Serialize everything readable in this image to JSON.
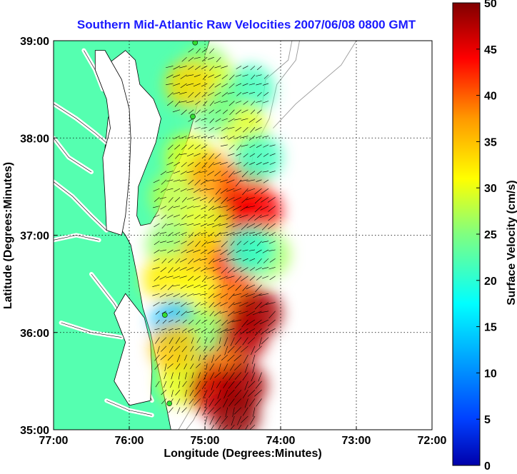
{
  "chart_data": {
    "type": "heatmap",
    "title": "Southern Mid-Atlantic Raw Velocities 2007/06/08 0800 GMT",
    "xlabel": "Longitude (Degrees:Minutes)",
    "ylabel": "Latitude (Degrees:Minutes)",
    "xlim": [
      -77,
      -72
    ],
    "ylim": [
      35,
      39
    ],
    "x_ticks": [
      -77,
      -76,
      -75,
      -74,
      -73,
      -72
    ],
    "x_tick_labels": [
      "77:00",
      "76:00",
      "75:00",
      "74:00",
      "73:00",
      "72:00"
    ],
    "y_ticks": [
      35,
      36,
      37,
      38,
      39
    ],
    "y_tick_labels": [
      "35:00",
      "36:00",
      "37:00",
      "38:00",
      "39:00"
    ],
    "grid": true,
    "colorbar": {
      "label": "Surface Velocity (cm/s)",
      "range": [
        0,
        50
      ],
      "ticks": [
        0,
        5,
        10,
        15,
        20,
        25,
        30,
        35,
        40,
        45,
        50
      ],
      "tick_labels": [
        "0",
        "5",
        "10",
        "15",
        "20",
        "25",
        "30",
        "35",
        "40",
        "45",
        "50"
      ],
      "colormap": "jet"
    },
    "land_color": "#55ffb0",
    "station_color": "#33dd33",
    "stations": [
      {
        "lon": -75.13,
        "lat": 38.98
      },
      {
        "lon": -75.16,
        "lat": 38.22
      },
      {
        "lon": -75.53,
        "lat": 36.18
      },
      {
        "lon": -75.47,
        "lat": 35.27
      }
    ],
    "field_regions": [
      {
        "lon": -75.0,
        "lat": 38.7,
        "speed": 26
      },
      {
        "lon": -74.8,
        "lat": 38.5,
        "speed": 30
      },
      {
        "lon": -74.4,
        "lat": 38.5,
        "speed": 22
      },
      {
        "lon": -74.5,
        "lat": 38.1,
        "speed": 30
      },
      {
        "lon": -74.9,
        "lat": 38.3,
        "speed": 24
      },
      {
        "lon": -75.2,
        "lat": 38.55,
        "speed": 33
      },
      {
        "lon": -75.2,
        "lat": 37.8,
        "speed": 30
      },
      {
        "lon": -75.4,
        "lat": 37.4,
        "speed": 28
      },
      {
        "lon": -74.9,
        "lat": 37.6,
        "speed": 36
      },
      {
        "lon": -74.5,
        "lat": 37.5,
        "speed": 40
      },
      {
        "lon": -74.3,
        "lat": 37.8,
        "speed": 22
      },
      {
        "lon": -74.6,
        "lat": 37.2,
        "speed": 45
      },
      {
        "lon": -74.3,
        "lat": 37.25,
        "speed": 44
      },
      {
        "lon": -75.0,
        "lat": 37.1,
        "speed": 30
      },
      {
        "lon": -75.45,
        "lat": 36.9,
        "speed": 26
      },
      {
        "lon": -75.0,
        "lat": 36.8,
        "speed": 34
      },
      {
        "lon": -74.6,
        "lat": 36.7,
        "speed": 42
      },
      {
        "lon": -74.2,
        "lat": 36.8,
        "speed": 27
      },
      {
        "lon": -75.5,
        "lat": 36.55,
        "speed": 32
      },
      {
        "lon": -75.1,
        "lat": 36.35,
        "speed": 31
      },
      {
        "lon": -74.6,
        "lat": 36.3,
        "speed": 38
      },
      {
        "lon": -75.4,
        "lat": 36.1,
        "speed": 16
      },
      {
        "lon": -75.0,
        "lat": 36.0,
        "speed": 26
      },
      {
        "lon": -74.5,
        "lat": 35.95,
        "speed": 47
      },
      {
        "lon": -74.3,
        "lat": 36.2,
        "speed": 48
      },
      {
        "lon": -75.1,
        "lat": 35.7,
        "speed": 24
      },
      {
        "lon": -74.8,
        "lat": 35.6,
        "speed": 38
      },
      {
        "lon": -75.3,
        "lat": 35.5,
        "speed": 30
      },
      {
        "lon": -74.9,
        "lat": 35.4,
        "speed": 46
      },
      {
        "lon": -74.5,
        "lat": 35.45,
        "speed": 48
      },
      {
        "lon": -74.6,
        "lat": 35.15,
        "speed": 49
      },
      {
        "lon": -75.4,
        "lat": 35.85,
        "speed": 34
      },
      {
        "lon": -74.4,
        "lat": 36.85,
        "speed": 21
      }
    ]
  }
}
